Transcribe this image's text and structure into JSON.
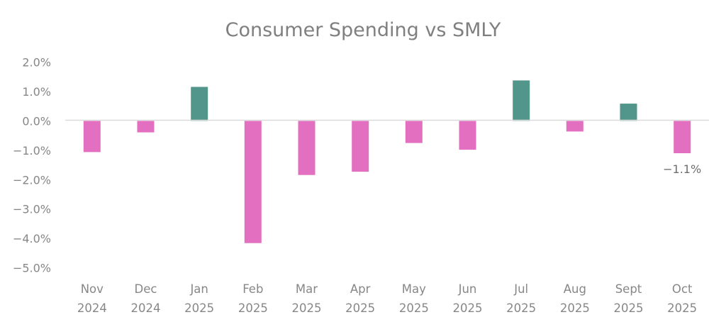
{
  "chart_data": {
    "type": "bar",
    "title": "Consumer Spending vs SMLY",
    "xlabel": "",
    "ylabel": "",
    "categories": [
      [
        "Nov",
        "2024"
      ],
      [
        "Dec",
        "2024"
      ],
      [
        "Jan",
        "2025"
      ],
      [
        "Feb",
        "2025"
      ],
      [
        "Mar",
        "2025"
      ],
      [
        "Apr",
        "2025"
      ],
      [
        "May",
        "2025"
      ],
      [
        "Jun",
        "2025"
      ],
      [
        "Jul",
        "2025"
      ],
      [
        "Aug",
        "2025"
      ],
      [
        "Sept",
        "2025"
      ],
      [
        "Oct",
        "2025"
      ]
    ],
    "series": [
      {
        "name": "Consumer Spending vs SMLY",
        "values": [
          -1.06,
          -0.39,
          1.16,
          -4.16,
          -1.84,
          -1.73,
          -0.75,
          -0.98,
          1.38,
          -0.36,
          0.59,
          -1.1
        ]
      }
    ],
    "ylim": [
      -5.0,
      2.0
    ],
    "yticks": [
      2.0,
      1.0,
      0.0,
      -1.0,
      -2.0,
      -3.0,
      -4.0,
      -5.0
    ],
    "ytick_labels": [
      "2.0%",
      "1.0%",
      "0.0%",
      "-1.0%",
      "-2.0%",
      "-3.0%",
      "-4.0%",
      "-5.0%"
    ],
    "data_labels": [
      {
        "index": 11,
        "text": "-1.1%"
      }
    ],
    "grid": false,
    "legend": "none",
    "colors": {
      "positive": "#52958A",
      "negative": "#E26FC0",
      "zero_line": "#D9D9D9",
      "text": "#878787"
    }
  }
}
